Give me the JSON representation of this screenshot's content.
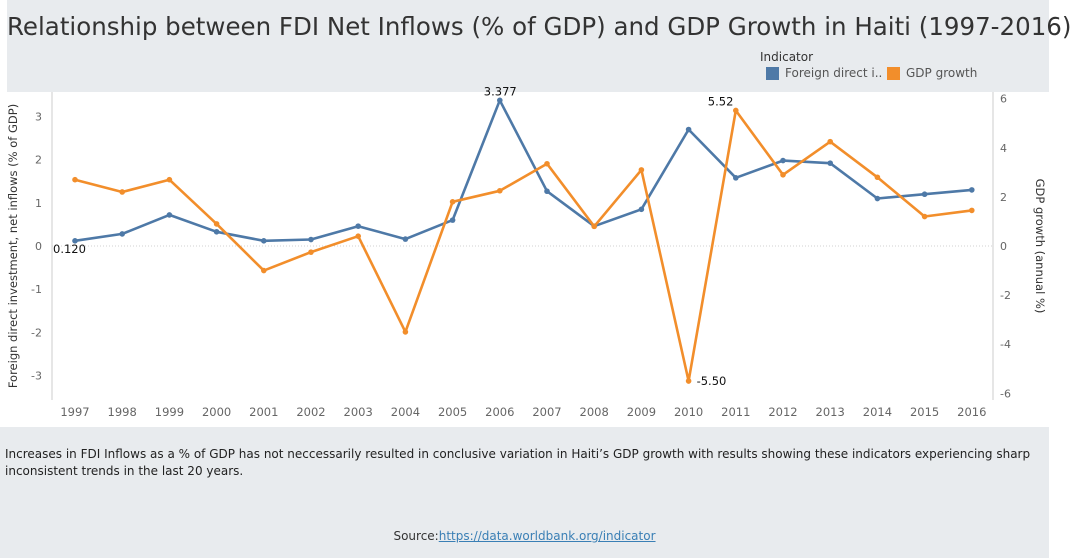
{
  "title": "Relationship between FDI Net Inflows (% of GDP) and GDP Growth in Haiti (1997-2016)",
  "legend": {
    "title": "Indicator",
    "items": [
      {
        "label": "Foreign direct i..",
        "color": "#4e79a7"
      },
      {
        "label": "GDP growth",
        "color": "#f28e2b"
      }
    ]
  },
  "chart_data": {
    "type": "line",
    "x": [
      "1997",
      "1998",
      "1999",
      "2000",
      "2001",
      "2002",
      "2003",
      "2004",
      "2005",
      "2006",
      "2007",
      "2008",
      "2009",
      "2010",
      "2011",
      "2012",
      "2013",
      "2014",
      "2015",
      "2016"
    ],
    "series": [
      {
        "name": "Foreign direct i..",
        "axis": "left",
        "color": "#4e79a7",
        "values": [
          0.12,
          0.28,
          0.72,
          0.33,
          0.12,
          0.15,
          0.46,
          0.16,
          0.6,
          3.377,
          1.27,
          0.46,
          0.85,
          2.7,
          1.58,
          1.98,
          1.92,
          1.1,
          1.2,
          1.3
        ]
      },
      {
        "name": "GDP growth",
        "axis": "right",
        "color": "#f28e2b",
        "values": [
          2.7,
          2.2,
          2.7,
          0.9,
          -1.0,
          -0.25,
          0.4,
          -3.5,
          1.8,
          2.25,
          3.35,
          0.8,
          3.1,
          -5.5,
          5.52,
          2.9,
          4.25,
          2.8,
          1.2,
          1.45
        ]
      }
    ],
    "y_left": {
      "label": "Foreign direct investment, net inflows (% of GDP)",
      "min": -3.5,
      "max": 3.5,
      "ticks": [
        3,
        2,
        1,
        0,
        -1,
        -2,
        -3
      ],
      "tick_labels": [
        "3",
        "2",
        "1",
        "0",
        "-1",
        "-2",
        "-3"
      ]
    },
    "y_right": {
      "label": "GDP growth (annual %)",
      "min": -6.15,
      "max": 6.15,
      "ticks": [
        6,
        4,
        2,
        0,
        -2,
        -4,
        -6
      ],
      "tick_labels": [
        "6",
        "4",
        "2",
        "0",
        "-2",
        "-4",
        "-6"
      ]
    },
    "annotations": [
      {
        "series": 0,
        "index": 0,
        "text": "0.120"
      },
      {
        "series": 0,
        "index": 9,
        "text": "3.377"
      },
      {
        "series": 1,
        "index": 14,
        "text": "5.52"
      },
      {
        "series": 1,
        "index": 13,
        "text": "-5.50"
      }
    ]
  },
  "footer": {
    "note": "Increases in FDI Inflows as a % of GDP has not neccessarily resulted in conclusive variation in Haiti’s GDP growth with results showing these indicators experiencing sharp inconsistent trends in the last 20 years.",
    "source_label": "Source:",
    "source_link": "https://data.worldbank.org/indicator"
  }
}
